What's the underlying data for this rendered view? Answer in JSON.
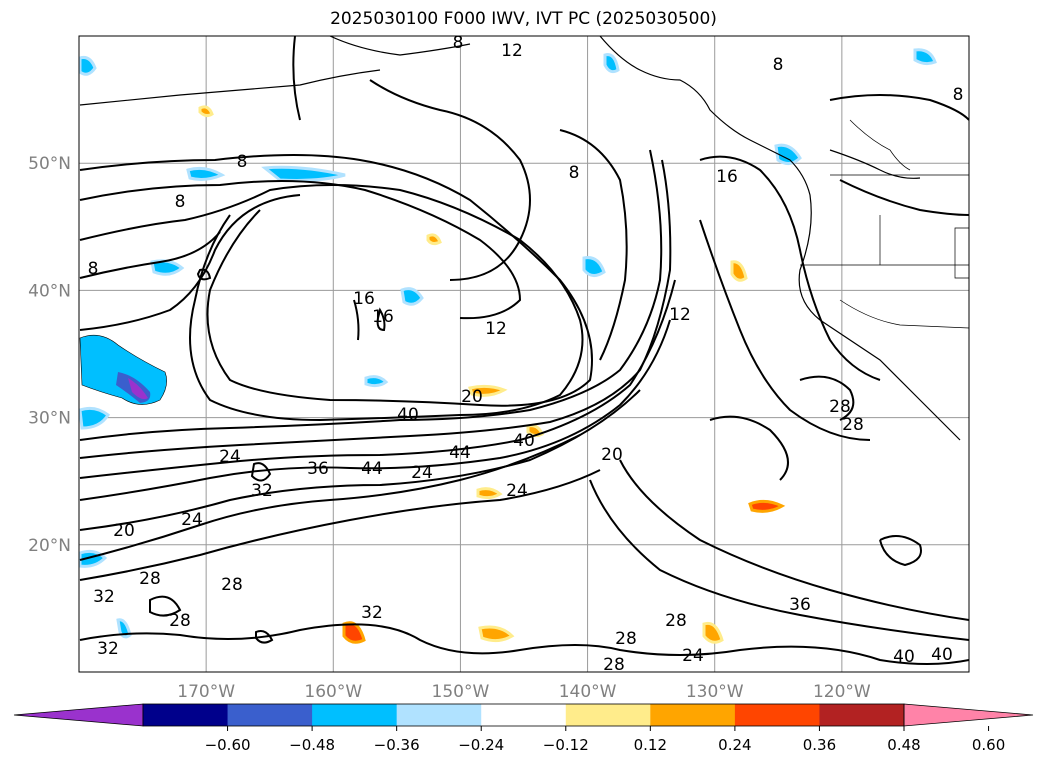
{
  "title": "2025030100 F000 IWV, IVT PC (2025030500)",
  "map": {
    "lon_range": [
      -180,
      -110
    ],
    "lat_range": [
      10,
      60
    ],
    "lat_ticks": [
      {
        "value": 50,
        "label": "50°N"
      },
      {
        "value": 40,
        "label": "40°N"
      },
      {
        "value": 30,
        "label": "30°N"
      },
      {
        "value": 20,
        "label": "20°N"
      }
    ],
    "lon_ticks": [
      {
        "value": -170,
        "label": "170°W"
      },
      {
        "value": -160,
        "label": "160°W"
      },
      {
        "value": -150,
        "label": "150°W"
      },
      {
        "value": -140,
        "label": "140°W"
      },
      {
        "value": -130,
        "label": "130°W"
      },
      {
        "value": -120,
        "label": "120°W"
      }
    ],
    "grid": true,
    "tick_label_color": "#808080",
    "contour_color": "#000000",
    "contour_labels": [
      "12",
      "8",
      "8",
      "8",
      "8",
      "8",
      "8",
      "8",
      "12",
      "16",
      "16",
      "16",
      "20",
      "20",
      "12",
      "28",
      "28",
      "40",
      "40",
      "44",
      "44",
      "36",
      "32",
      "24",
      "24",
      "24",
      "24",
      "20",
      "28",
      "28",
      "28",
      "32",
      "32",
      "36",
      "40",
      "40",
      "28",
      "28",
      "24",
      "28",
      "32"
    ]
  },
  "colorbar": {
    "ticks": [
      "−0.60",
      "−0.48",
      "−0.36",
      "−0.24",
      "−0.12",
      "0.12",
      "0.24",
      "0.36",
      "0.48",
      "0.60"
    ],
    "colors": [
      "#9a32cd",
      "#00008b",
      "#3a5fcd",
      "#00bfff",
      "#b0e2ff",
      "#ffffff",
      "#ffec8b",
      "#ffa500",
      "#ff4500",
      "#b22222",
      "#ff83a8"
    ],
    "extend": "both"
  }
}
